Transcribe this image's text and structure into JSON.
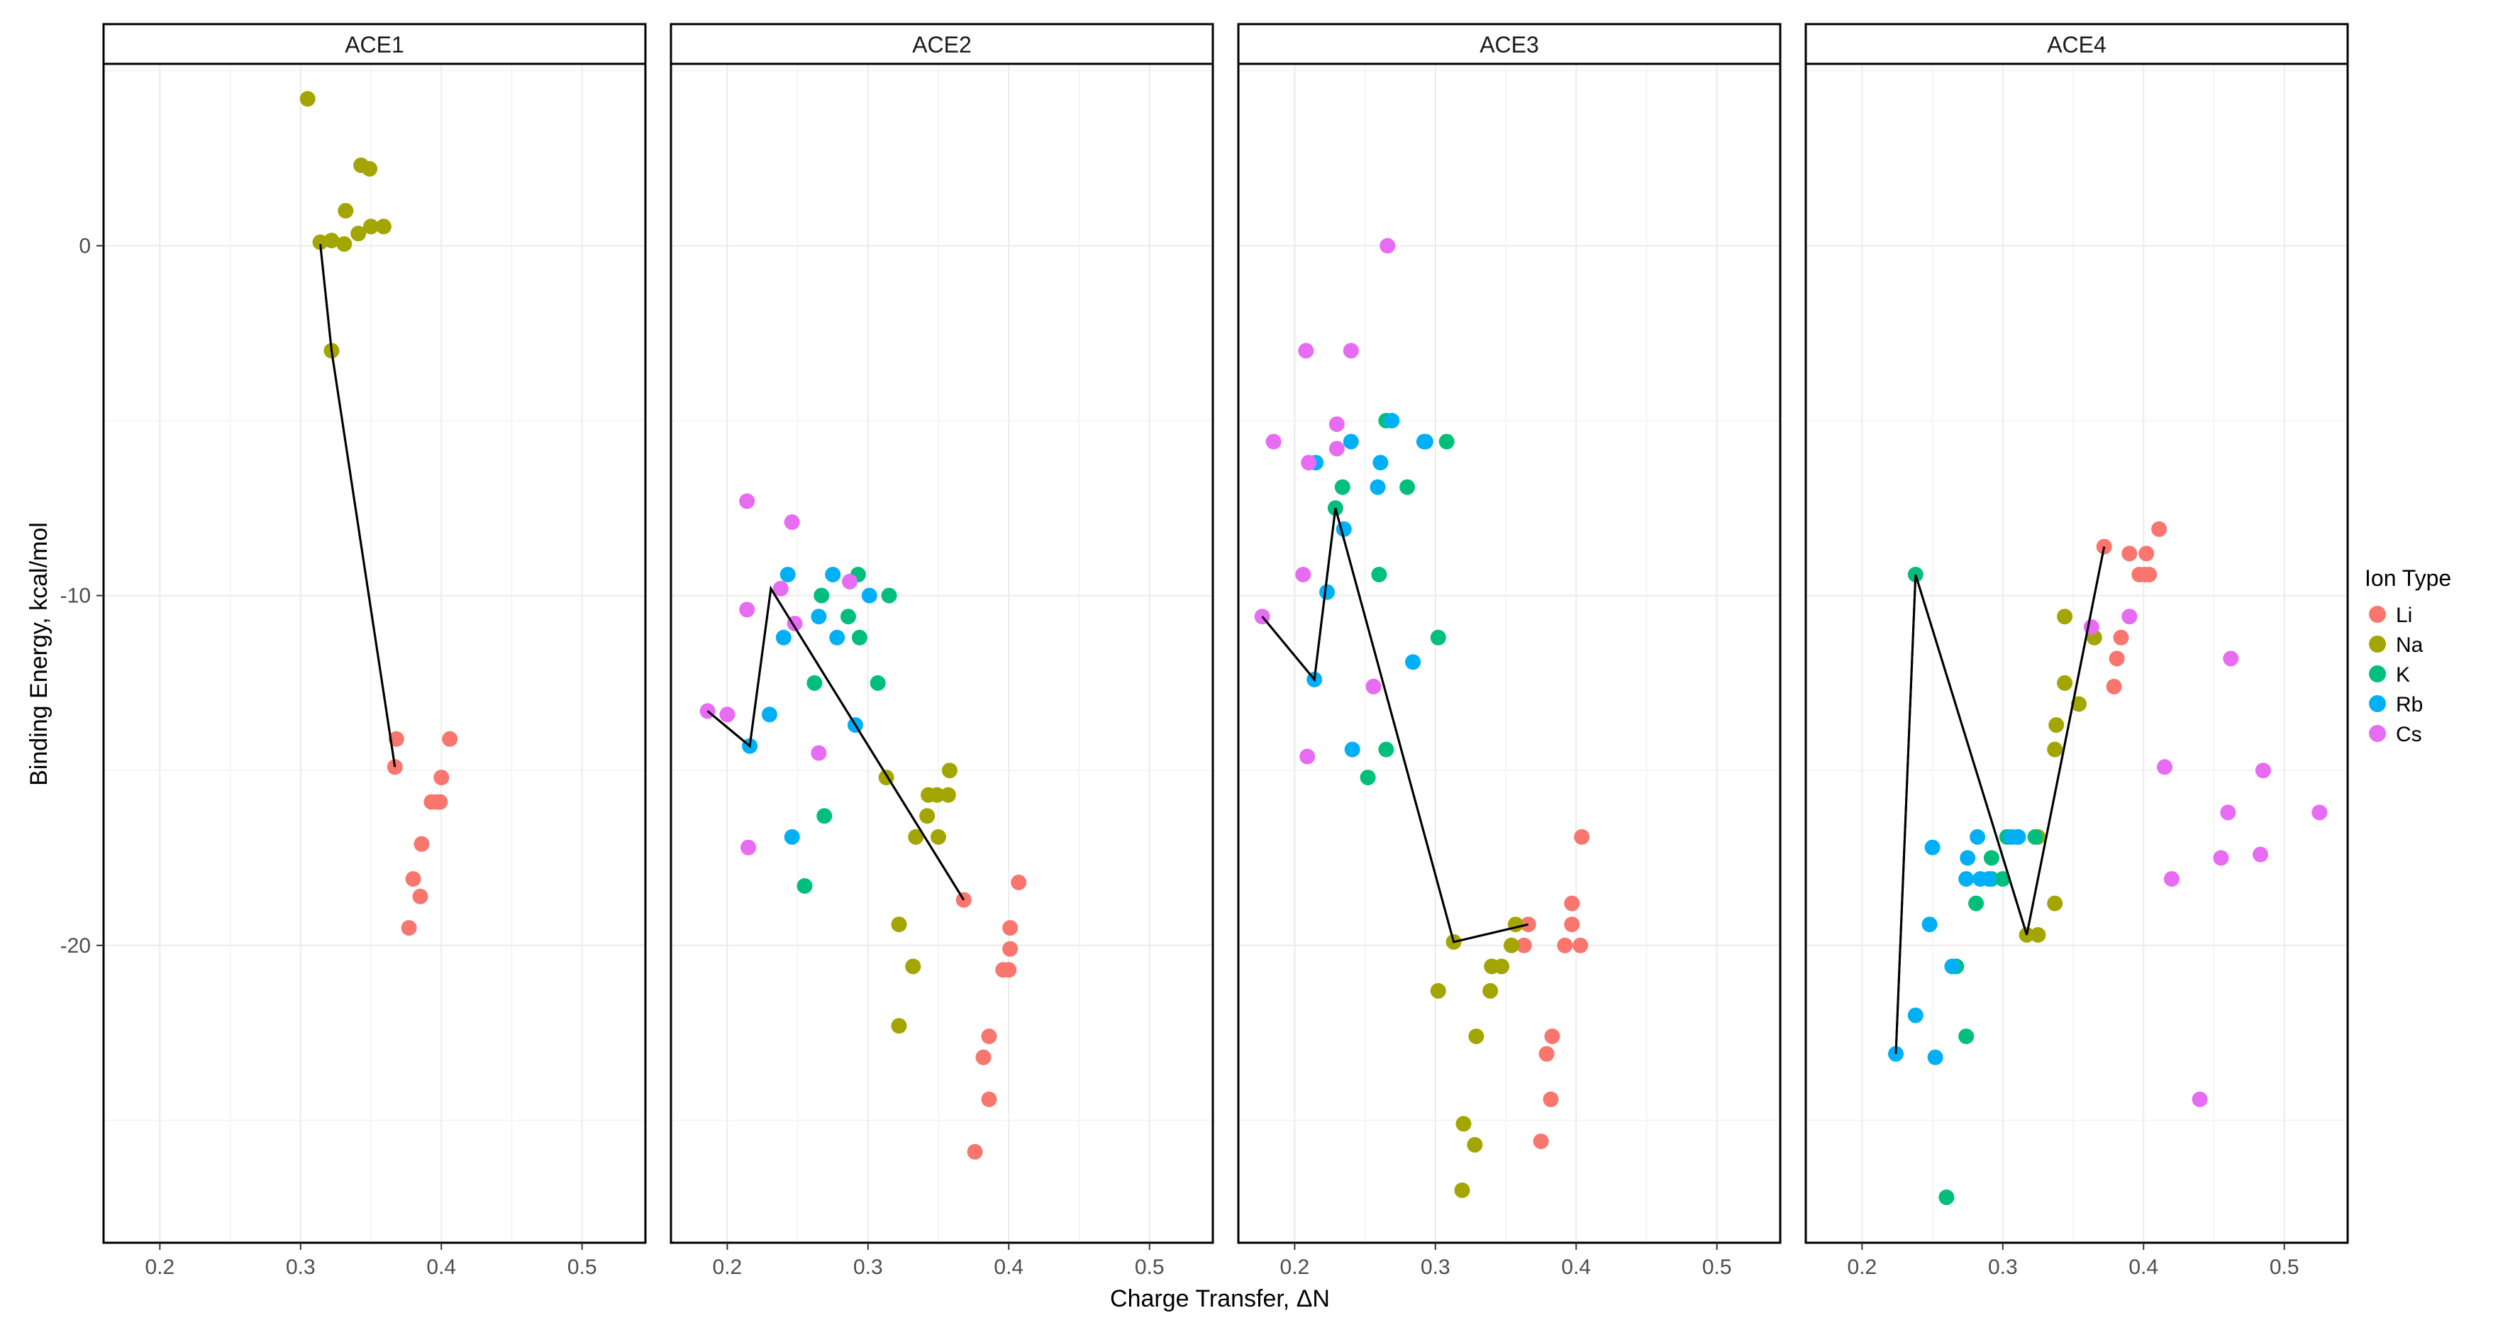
{
  "chart_data": {
    "type": "scatter",
    "xlabel": "Charge Transfer, ΔN",
    "ylabel": "Binding Energy, kcal/mol",
    "xlim": [
      0.16,
      0.545
    ],
    "ylim": [
      -28.5,
      5.2
    ],
    "x_ticks": [
      0.2,
      0.3,
      0.4,
      0.5
    ],
    "x_tick_labels": [
      "0.2",
      "0.3",
      "0.4",
      "0.5"
    ],
    "y_ticks": [
      -20,
      -10,
      0
    ],
    "y_tick_labels": [
      "-20",
      "-10",
      "0"
    ],
    "legend": {
      "title": "Ion Type",
      "position": "right",
      "entries": [
        {
          "name": "Li",
          "color": "#F8766D"
        },
        {
          "name": "Na",
          "color": "#A3A500"
        },
        {
          "name": "K",
          "color": "#00BF7D"
        },
        {
          "name": "Rb",
          "color": "#00B0F6"
        },
        {
          "name": "Cs",
          "color": "#E76BF3"
        }
      ]
    },
    "line_color": "#000000",
    "panels": [
      {
        "title": "ACE1",
        "series": {
          "Li": [
            [
              0.368,
              -14.1
            ],
            [
              0.406,
              -14.1
            ],
            [
              0.367,
              -14.9
            ],
            [
              0.4,
              -15.2
            ],
            [
              0.393,
              -15.9
            ],
            [
              0.397,
              -15.9
            ],
            [
              0.399,
              -15.9
            ],
            [
              0.386,
              -17.1
            ],
            [
              0.38,
              -18.1
            ],
            [
              0.385,
              -18.6
            ],
            [
              0.377,
              -19.5
            ]
          ],
          "Na": [
            [
              0.305,
              4.2
            ],
            [
              0.343,
              2.3
            ],
            [
              0.349,
              2.2
            ],
            [
              0.332,
              1.0
            ],
            [
              0.359,
              0.55
            ],
            [
              0.35,
              0.55
            ],
            [
              0.341,
              0.35
            ],
            [
              0.322,
              0.15
            ],
            [
              0.314,
              0.1
            ],
            [
              0.331,
              0.05
            ],
            [
              0.322,
              -3.0
            ]
          ],
          "K": [],
          "Rb": [],
          "Cs": []
        },
        "line": [
          [
            0.314,
            0.05
          ],
          [
            0.322,
            -3.0
          ],
          [
            0.367,
            -14.9
          ]
        ]
      },
      {
        "title": "ACE2",
        "series": {
          "Li": [
            [
              0.407,
              -18.2
            ],
            [
              0.368,
              -18.7
            ],
            [
              0.401,
              -19.5
            ],
            [
              0.401,
              -20.1
            ],
            [
              0.396,
              -20.7
            ],
            [
              0.4,
              -20.7
            ],
            [
              0.386,
              -22.6
            ],
            [
              0.382,
              -23.2
            ],
            [
              0.386,
              -24.4
            ],
            [
              0.376,
              -25.9
            ]
          ],
          "Na": [
            [
              0.358,
              -15.0
            ],
            [
              0.313,
              -15.2
            ],
            [
              0.343,
              -15.7
            ],
            [
              0.349,
              -15.7
            ],
            [
              0.357,
              -15.7
            ],
            [
              0.342,
              -16.3
            ],
            [
              0.334,
              -16.9
            ],
            [
              0.35,
              -16.9
            ],
            [
              0.322,
              -19.4
            ],
            [
              0.332,
              -20.6
            ],
            [
              0.322,
              -22.3
            ]
          ],
          "K": [
            [
              0.293,
              -9.4
            ],
            [
              0.267,
              -10.0
            ],
            [
              0.315,
              -10.0
            ],
            [
              0.286,
              -10.6
            ],
            [
              0.294,
              -11.2
            ],
            [
              0.262,
              -12.5
            ],
            [
              0.307,
              -12.5
            ],
            [
              0.269,
              -16.3
            ],
            [
              0.255,
              -18.3
            ]
          ],
          "Rb": [
            [
              0.243,
              -9.4
            ],
            [
              0.275,
              -9.4
            ],
            [
              0.301,
              -10.0
            ],
            [
              0.265,
              -10.6
            ],
            [
              0.24,
              -11.2
            ],
            [
              0.278,
              -11.2
            ],
            [
              0.23,
              -13.4
            ],
            [
              0.291,
              -13.7
            ],
            [
              0.216,
              -14.3
            ],
            [
              0.246,
              -16.9
            ]
          ],
          "Cs": [
            [
              0.214,
              -7.3
            ],
            [
              0.246,
              -7.9
            ],
            [
              0.287,
              -9.6
            ],
            [
              0.238,
              -9.8
            ],
            [
              0.214,
              -10.4
            ],
            [
              0.248,
              -10.8
            ],
            [
              0.186,
              -13.3
            ],
            [
              0.2,
              -13.4
            ],
            [
              0.265,
              -14.5
            ],
            [
              0.215,
              -17.2
            ]
          ],
          "Mix": []
        },
        "line": [
          [
            0.186,
            -13.3
          ],
          [
            0.216,
            -14.3
          ],
          [
            0.231,
            -9.8
          ],
          [
            0.368,
            -18.7
          ]
        ]
      },
      {
        "title": "ACE3",
        "series": {
          "Li": [
            [
              0.404,
              -16.9
            ],
            [
              0.397,
              -18.8
            ],
            [
              0.366,
              -19.4
            ],
            [
              0.397,
              -19.4
            ],
            [
              0.363,
              -20.0
            ],
            [
              0.392,
              -20.0
            ],
            [
              0.403,
              -20.0
            ],
            [
              0.383,
              -22.6
            ],
            [
              0.379,
              -23.1
            ],
            [
              0.382,
              -24.4
            ],
            [
              0.375,
              -25.6
            ]
          ],
          "Na": [
            [
              0.357,
              -19.4
            ],
            [
              0.313,
              -19.9
            ],
            [
              0.354,
              -20.0
            ],
            [
              0.34,
              -20.6
            ],
            [
              0.347,
              -20.6
            ],
            [
              0.302,
              -21.3
            ],
            [
              0.339,
              -21.3
            ],
            [
              0.329,
              -22.6
            ],
            [
              0.32,
              -25.1
            ],
            [
              0.328,
              -25.7
            ],
            [
              0.319,
              -27.0
            ]
          ],
          "K": [
            [
              0.265,
              -5.0
            ],
            [
              0.308,
              -5.6
            ],
            [
              0.234,
              -6.9
            ],
            [
              0.28,
              -6.9
            ],
            [
              0.229,
              -7.5
            ],
            [
              0.26,
              -9.4
            ],
            [
              0.302,
              -11.2
            ],
            [
              0.265,
              -14.4
            ],
            [
              0.252,
              -15.2
            ]
          ],
          "Rb": [
            [
              0.269,
              -5.0
            ],
            [
              0.24,
              -5.6
            ],
            [
              0.292,
              -5.6
            ],
            [
              0.293,
              -5.6
            ],
            [
              0.215,
              -6.2
            ],
            [
              0.261,
              -6.2
            ],
            [
              0.259,
              -6.9
            ],
            [
              0.235,
              -8.1
            ],
            [
              0.223,
              -9.9
            ],
            [
              0.284,
              -11.9
            ],
            [
              0.214,
              -12.4
            ],
            [
              0.241,
              -14.4
            ]
          ],
          "Cs": [
            [
              0.266,
              0.0
            ],
            [
              0.208,
              -3.0
            ],
            [
              0.24,
              -3.0
            ],
            [
              0.23,
              -5.1
            ],
            [
              0.185,
              -5.6
            ],
            [
              0.23,
              -5.8
            ],
            [
              0.21,
              -6.2
            ],
            [
              0.206,
              -9.4
            ],
            [
              0.177,
              -10.6
            ],
            [
              0.256,
              -12.6
            ],
            [
              0.209,
              -14.6
            ]
          ]
        },
        "line": [
          [
            0.177,
            -10.6
          ],
          [
            0.214,
            -12.4
          ],
          [
            0.229,
            -7.5
          ],
          [
            0.313,
            -19.9
          ],
          [
            0.366,
            -19.4
          ]
        ]
      },
      {
        "title": "ACE4",
        "series": {
          "Li": [
            [
              0.411,
              -8.1
            ],
            [
              0.372,
              -8.6
            ],
            [
              0.39,
              -8.8
            ],
            [
              0.402,
              -8.8
            ],
            [
              0.397,
              -9.4
            ],
            [
              0.404,
              -9.4
            ],
            [
              0.401,
              -9.4
            ],
            [
              0.384,
              -11.2
            ],
            [
              0.381,
              -11.8
            ],
            [
              0.379,
              -12.6
            ]
          ],
          "Na": [
            [
              0.344,
              -10.6
            ],
            [
              0.365,
              -11.2
            ],
            [
              0.344,
              -12.5
            ],
            [
              0.338,
              -13.7
            ],
            [
              0.354,
              -13.1
            ],
            [
              0.337,
              -14.4
            ],
            [
              0.325,
              -16.9
            ],
            [
              0.337,
              -18.8
            ],
            [
              0.317,
              -19.7
            ],
            [
              0.325,
              -19.7
            ]
          ],
          "K": [
            [
              0.238,
              -9.4
            ],
            [
              0.303,
              -16.9
            ],
            [
              0.31,
              -16.9
            ],
            [
              0.323,
              -16.9
            ],
            [
              0.292,
              -17.5
            ],
            [
              0.292,
              -18.1
            ],
            [
              0.3,
              -18.1
            ],
            [
              0.281,
              -18.8
            ],
            [
              0.267,
              -20.6
            ],
            [
              0.274,
              -22.6
            ],
            [
              0.26,
              -27.2
            ]
          ],
          "Rb": [
            [
              0.282,
              -16.9
            ],
            [
              0.306,
              -16.9
            ],
            [
              0.311,
              -16.9
            ],
            [
              0.25,
              -17.2
            ],
            [
              0.275,
              -17.5
            ],
            [
              0.274,
              -18.1
            ],
            [
              0.284,
              -18.1
            ],
            [
              0.29,
              -18.1
            ],
            [
              0.248,
              -19.4
            ],
            [
              0.264,
              -20.6
            ],
            [
              0.238,
              -22.0
            ],
            [
              0.224,
              -23.1
            ],
            [
              0.252,
              -23.2
            ]
          ],
          "Cs": [
            [
              0.462,
              -11.8
            ],
            [
              0.363,
              -10.9
            ],
            [
              0.39,
              -10.6
            ],
            [
              0.415,
              -14.9
            ],
            [
              0.485,
              -15.0
            ],
            [
              0.46,
              -16.2
            ],
            [
              0.525,
              -16.2
            ],
            [
              0.455,
              -17.5
            ],
            [
              0.483,
              -17.4
            ],
            [
              0.42,
              -18.1
            ],
            [
              0.44,
              -24.4
            ]
          ]
        },
        "line": [
          [
            0.224,
            -23.1
          ],
          [
            0.238,
            -9.4
          ],
          [
            0.317,
            -19.7
          ],
          [
            0.372,
            -8.6
          ]
        ]
      }
    ]
  }
}
